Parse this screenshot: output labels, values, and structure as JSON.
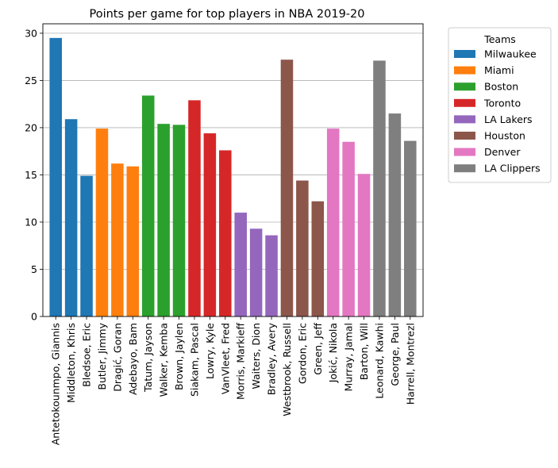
{
  "chart_data": {
    "type": "bar",
    "title": "Points per game for top players in NBA 2019-20",
    "xlabel": "",
    "ylabel": "",
    "ylim": [
      0,
      31
    ],
    "yticks": [
      0,
      5,
      10,
      15,
      20,
      25,
      30
    ],
    "grid": "horizontal",
    "legend_title": "Teams",
    "legend_placement": "outside-top-right",
    "series": [
      {
        "name": "Milwaukee",
        "color": "#1f77b4",
        "categories": [
          "Antetokounmpo, Giannis",
          "Middleton, Khris",
          "Bledsoe, Eric"
        ],
        "values": [
          29.5,
          20.9,
          14.9
        ]
      },
      {
        "name": "Miami",
        "color": "#ff7f0e",
        "categories": [
          "Butler, Jimmy",
          "Dragić, Goran",
          "Adebayo, Bam"
        ],
        "values": [
          19.9,
          16.2,
          15.9
        ]
      },
      {
        "name": "Boston",
        "color": "#2ca02c",
        "categories": [
          "Tatum, Jayson",
          "Walker, Kemba",
          "Brown, Jaylen"
        ],
        "values": [
          23.4,
          20.4,
          20.3
        ]
      },
      {
        "name": "Toronto",
        "color": "#d62728",
        "categories": [
          "Siakam, Pascal",
          "Lowry, Kyle",
          "VanVleet, Fred"
        ],
        "values": [
          22.9,
          19.4,
          17.6
        ]
      },
      {
        "name": "LA Lakers",
        "color": "#9467bd",
        "categories": [
          "Morris, Markieff",
          "Waiters, Dion",
          "Bradley, Avery"
        ],
        "values": [
          11.0,
          9.3,
          8.6
        ]
      },
      {
        "name": "Houston",
        "color": "#8c564b",
        "categories": [
          "Westbrook, Russell",
          "Gordon, Eric",
          "Green, Jeff"
        ],
        "values": [
          27.2,
          14.4,
          12.2
        ]
      },
      {
        "name": "Denver",
        "color": "#e377c2",
        "categories": [
          "Jokić, Nikola",
          "Murray, Jamal",
          "Barton, Will"
        ],
        "values": [
          19.9,
          18.5,
          15.1
        ]
      },
      {
        "name": "LA Clippers",
        "color": "#7f7f7f",
        "categories": [
          "Leonard, Kawhi",
          "George, Paul",
          "Harrell, Montrezl"
        ],
        "values": [
          27.1,
          21.5,
          18.6
        ]
      }
    ]
  }
}
